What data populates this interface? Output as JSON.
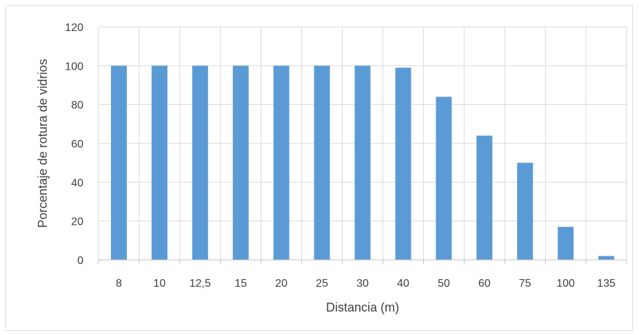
{
  "chart_data": {
    "type": "bar",
    "categories": [
      "8",
      "10",
      "12,5",
      "15",
      "20",
      "25",
      "30",
      "40",
      "50",
      "60",
      "75",
      "100",
      "135"
    ],
    "values": [
      100,
      100,
      100,
      100,
      100,
      100,
      100,
      99,
      84,
      64,
      50,
      17,
      2
    ],
    "title": "",
    "xlabel": "Distancia (m)",
    "ylabel": "Porcentaje de rotura de vidrios",
    "ylim": [
      0,
      120
    ],
    "yticks": [
      "0",
      "20",
      "40",
      "60",
      "80",
      "100",
      "120"
    ],
    "grid": true,
    "legend": "none",
    "bar_color": "#5b9bd5",
    "grid_color": "#d9d9d9",
    "axis_color": "#bfbfbf",
    "text_color": "#404040"
  }
}
